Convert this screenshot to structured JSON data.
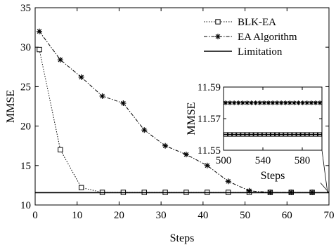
{
  "chart_data": {
    "type": "line",
    "title": "",
    "xlabel": "Steps",
    "ylabel": "MMSE",
    "xlim": [
      0,
      70
    ],
    "ylim": [
      10,
      35
    ],
    "xticks": [
      "0",
      "10",
      "20",
      "30",
      "40",
      "50",
      "60",
      "70"
    ],
    "yticks": [
      "10",
      "15",
      "20",
      "25",
      "30",
      "35"
    ],
    "grid": false,
    "legend_position": "top-right",
    "series": [
      {
        "name": "BLK-EA",
        "marker": "square",
        "line_style": "dotted",
        "x": [
          1,
          6,
          11,
          16,
          21,
          26,
          31,
          36,
          41,
          46,
          51,
          56,
          61,
          66
        ],
        "y": [
          29.7,
          17.0,
          12.2,
          11.6,
          11.6,
          11.6,
          11.6,
          11.6,
          11.6,
          11.6,
          11.6,
          11.6,
          11.6,
          11.6
        ]
      },
      {
        "name": "EA Algorithm",
        "marker": "asterisk",
        "line_style": "dash-dot",
        "x": [
          1,
          6,
          11,
          16,
          21,
          26,
          31,
          36,
          41,
          46,
          51,
          56,
          61,
          66
        ],
        "y": [
          32.0,
          28.4,
          26.2,
          23.8,
          22.9,
          19.5,
          17.5,
          16.4,
          15.0,
          13.0,
          11.8,
          11.6,
          11.6,
          11.6
        ]
      },
      {
        "name": "Limitation",
        "marker": "none",
        "line_style": "solid",
        "x": [
          0,
          70
        ],
        "y": [
          11.56,
          11.56
        ]
      }
    ],
    "inset": {
      "xlabel": "Steps",
      "ylabel": "MMSE",
      "xlim": [
        500,
        600
      ],
      "ylim": [
        11.55,
        11.59
      ],
      "xticks": [
        "500",
        "540",
        "580"
      ],
      "yticks": [
        "11.55",
        "11.57",
        "11.59"
      ],
      "series": [
        {
          "name": "EA Algorithm",
          "marker": "asterisk",
          "y": 11.58
        },
        {
          "name": "BLK-EA",
          "marker": "square",
          "y": 11.56
        },
        {
          "name": "Limitation",
          "marker": "none",
          "y": 11.56
        }
      ]
    }
  }
}
